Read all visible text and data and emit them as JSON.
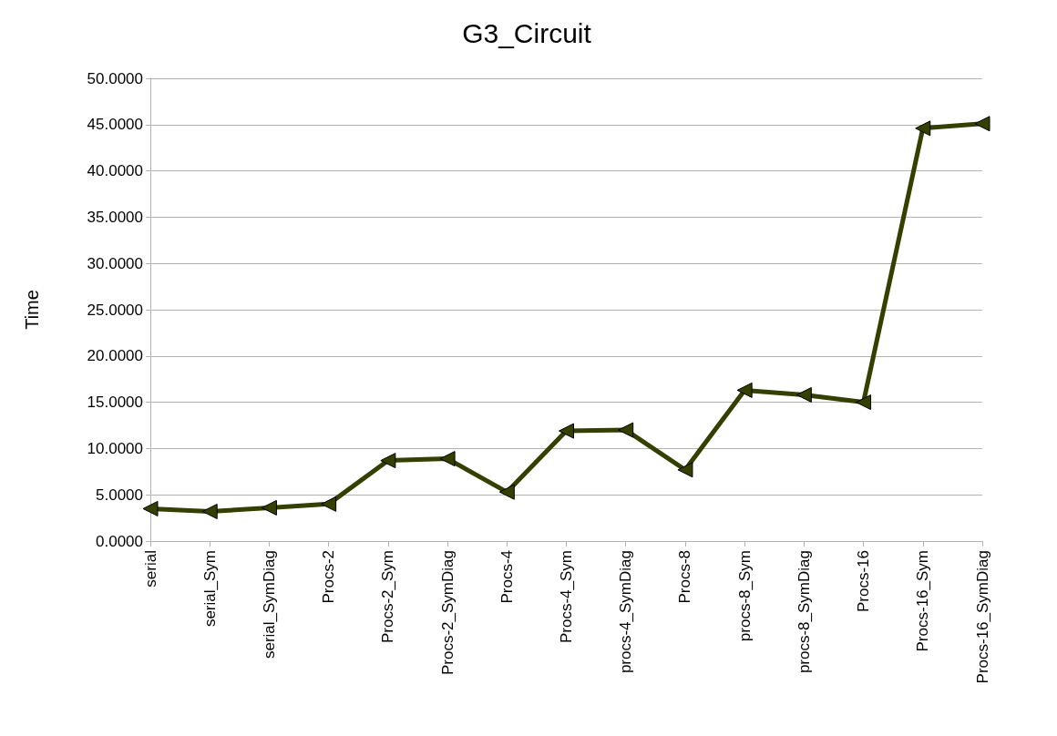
{
  "chart_data": {
    "type": "line",
    "title": "G3_Circuit",
    "ylabel": "Time",
    "categories": [
      "serial",
      "serial_Sym",
      "serial_SymDiag",
      "Procs-2",
      "Procs-2_Sym",
      "Procs-2_SymDiag",
      "Procs-4",
      "Procs-4_Sym",
      "procs-4_SymDiag",
      "Procs-8",
      "procs-8_Sym",
      "procs-8_SymDiag",
      "Procs-16",
      "Procs-16_Sym",
      "Procs-16_SymDiag"
    ],
    "series": [
      {
        "color": "#334000",
        "values": [
          3.5,
          3.2,
          3.6,
          4.0,
          8.7,
          8.9,
          5.3,
          11.9,
          12.0,
          7.7,
          16.3,
          15.8,
          15.0,
          44.6,
          45.1
        ]
      }
    ],
    "ylim": [
      0,
      50
    ],
    "yticks": [
      {
        "value": 0,
        "label": "0.0000"
      },
      {
        "value": 5,
        "label": "5.0000"
      },
      {
        "value": 10,
        "label": "10.0000"
      },
      {
        "value": 15,
        "label": "15.0000"
      },
      {
        "value": 20,
        "label": "20.0000"
      },
      {
        "value": 25,
        "label": "25.0000"
      },
      {
        "value": 30,
        "label": "30.0000"
      },
      {
        "value": 35,
        "label": "35.0000"
      },
      {
        "value": 40,
        "label": "40.0000"
      },
      {
        "value": 45,
        "label": "45.0000"
      },
      {
        "value": 50,
        "label": "50.0000"
      }
    ],
    "grid": "y",
    "marker": "triangle",
    "line_style": "solid"
  }
}
